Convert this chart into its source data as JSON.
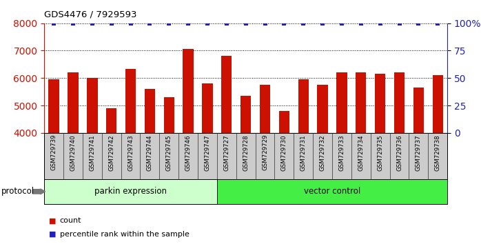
{
  "title": "GDS4476 / 7929593",
  "samples": [
    "GSM729739",
    "GSM729740",
    "GSM729741",
    "GSM729742",
    "GSM729743",
    "GSM729744",
    "GSM729745",
    "GSM729746",
    "GSM729747",
    "GSM729727",
    "GSM729728",
    "GSM729729",
    "GSM729730",
    "GSM729731",
    "GSM729732",
    "GSM729733",
    "GSM729734",
    "GSM729735",
    "GSM729736",
    "GSM729737",
    "GSM729738"
  ],
  "counts": [
    5950,
    6200,
    6000,
    4900,
    6330,
    5600,
    5300,
    7050,
    5800,
    6800,
    5350,
    5750,
    4800,
    5950,
    5750,
    6200,
    6200,
    6150,
    6200,
    5650,
    6100
  ],
  "percentile_values": [
    100,
    100,
    100,
    100,
    100,
    100,
    100,
    100,
    100,
    100,
    100,
    100,
    100,
    100,
    100,
    100,
    100,
    100,
    100,
    100,
    100
  ],
  "bar_color": "#CC1100",
  "percentile_color": "#2222BB",
  "ylim_left": [
    4000,
    8000
  ],
  "ylim_right": [
    0,
    100
  ],
  "yticks_left": [
    4000,
    5000,
    6000,
    7000,
    8000
  ],
  "yticks_right": [
    0,
    25,
    50,
    75,
    100
  ],
  "ytick_labels_right": [
    "0",
    "25",
    "50",
    "75",
    "100%"
  ],
  "parkin_count": 9,
  "group1_label": "parkin expression",
  "group2_label": "vector control",
  "group1_color": "#CCFFCC",
  "group2_color": "#44EE44",
  "protocol_label": "protocol",
  "legend_count_label": "count",
  "legend_pct_label": "percentile rank within the sample"
}
